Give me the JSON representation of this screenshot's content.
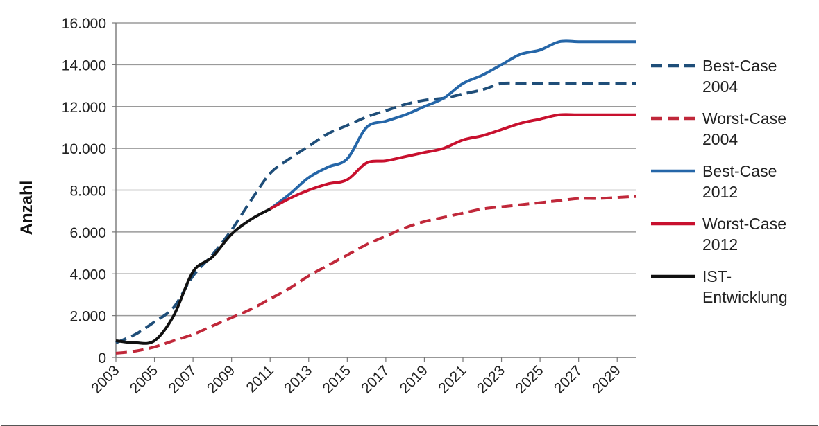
{
  "chart_data": {
    "type": "line",
    "title": "",
    "xlabel": "",
    "ylabel": "Anzahl",
    "xlim": [
      2003,
      2030
    ],
    "ylim": [
      0,
      16000
    ],
    "grid": true,
    "legend_position": "right",
    "x_ticks": [
      "2003",
      "2005",
      "2007",
      "2009",
      "2011",
      "2013",
      "2015",
      "2017",
      "2019",
      "2021",
      "2023",
      "2025",
      "2027",
      "2029"
    ],
    "y_ticks": [
      "0",
      "2.000",
      "4.000",
      "6.000",
      "8.000",
      "10.000",
      "12.000",
      "14.000",
      "16.000"
    ],
    "series": [
      {
        "name": "Best-Case 2004",
        "legend_lines": [
          "Best-Case",
          "2004"
        ],
        "color": "#1f4e79",
        "style": "dashed",
        "points": [
          [
            2003,
            700
          ],
          [
            2004,
            1100
          ],
          [
            2005,
            1700
          ],
          [
            2006,
            2400
          ],
          [
            2007,
            3900
          ],
          [
            2008,
            4900
          ],
          [
            2009,
            6100
          ],
          [
            2010,
            7500
          ],
          [
            2011,
            8800
          ],
          [
            2012,
            9500
          ],
          [
            2013,
            10100
          ],
          [
            2014,
            10700
          ],
          [
            2015,
            11100
          ],
          [
            2016,
            11500
          ],
          [
            2017,
            11800
          ],
          [
            2018,
            12100
          ],
          [
            2019,
            12300
          ],
          [
            2020,
            12400
          ],
          [
            2021,
            12600
          ],
          [
            2022,
            12800
          ],
          [
            2023,
            13100
          ],
          [
            2024,
            13100
          ],
          [
            2025,
            13100
          ],
          [
            2026,
            13100
          ],
          [
            2027,
            13100
          ],
          [
            2028,
            13100
          ],
          [
            2029,
            13100
          ],
          [
            2030,
            13100
          ]
        ]
      },
      {
        "name": "Worst-Case 2004",
        "legend_lines": [
          "Worst-Case",
          "2004"
        ],
        "color": "#c0283a",
        "style": "dashed",
        "points": [
          [
            2003,
            200
          ],
          [
            2004,
            300
          ],
          [
            2005,
            500
          ],
          [
            2006,
            800
          ],
          [
            2007,
            1100
          ],
          [
            2008,
            1500
          ],
          [
            2009,
            1900
          ],
          [
            2010,
            2300
          ],
          [
            2011,
            2800
          ],
          [
            2012,
            3300
          ],
          [
            2013,
            3900
          ],
          [
            2014,
            4400
          ],
          [
            2015,
            4900
          ],
          [
            2016,
            5400
          ],
          [
            2017,
            5800
          ],
          [
            2018,
            6200
          ],
          [
            2019,
            6500
          ],
          [
            2020,
            6700
          ],
          [
            2021,
            6900
          ],
          [
            2022,
            7100
          ],
          [
            2023,
            7200
          ],
          [
            2024,
            7300
          ],
          [
            2025,
            7400
          ],
          [
            2026,
            7500
          ],
          [
            2027,
            7600
          ],
          [
            2028,
            7600
          ],
          [
            2029,
            7650
          ],
          [
            2030,
            7700
          ]
        ]
      },
      {
        "name": "Best-Case 2012",
        "legend_lines": [
          "Best-Case",
          "2012"
        ],
        "color": "#2566a8",
        "style": "solid",
        "points": [
          [
            2011,
            7100
          ],
          [
            2012,
            7800
          ],
          [
            2013,
            8600
          ],
          [
            2014,
            9100
          ],
          [
            2015,
            9500
          ],
          [
            2016,
            11000
          ],
          [
            2017,
            11300
          ],
          [
            2018,
            11600
          ],
          [
            2019,
            12000
          ],
          [
            2020,
            12400
          ],
          [
            2021,
            13100
          ],
          [
            2022,
            13500
          ],
          [
            2023,
            14000
          ],
          [
            2024,
            14500
          ],
          [
            2025,
            14700
          ],
          [
            2026,
            15100
          ],
          [
            2027,
            15100
          ],
          [
            2028,
            15100
          ],
          [
            2029,
            15100
          ],
          [
            2030,
            15100
          ]
        ]
      },
      {
        "name": "Worst-Case 2012",
        "legend_lines": [
          "Worst-Case",
          "2012"
        ],
        "color": "#c8102e",
        "style": "solid",
        "points": [
          [
            2011,
            7100
          ],
          [
            2012,
            7600
          ],
          [
            2013,
            8000
          ],
          [
            2014,
            8300
          ],
          [
            2015,
            8500
          ],
          [
            2016,
            9300
          ],
          [
            2017,
            9400
          ],
          [
            2018,
            9600
          ],
          [
            2019,
            9800
          ],
          [
            2020,
            10000
          ],
          [
            2021,
            10400
          ],
          [
            2022,
            10600
          ],
          [
            2023,
            10900
          ],
          [
            2024,
            11200
          ],
          [
            2025,
            11400
          ],
          [
            2026,
            11600
          ],
          [
            2027,
            11600
          ],
          [
            2028,
            11600
          ],
          [
            2029,
            11600
          ],
          [
            2030,
            11600
          ]
        ]
      },
      {
        "name": "IST-Entwicklung",
        "legend_lines": [
          "IST-",
          "Entwicklung"
        ],
        "color": "#111111",
        "style": "solid",
        "points": [
          [
            2003,
            800
          ],
          [
            2004,
            700
          ],
          [
            2005,
            800
          ],
          [
            2006,
            2000
          ],
          [
            2007,
            4100
          ],
          [
            2008,
            4800
          ],
          [
            2009,
            5900
          ],
          [
            2010,
            6600
          ],
          [
            2011,
            7100
          ]
        ]
      }
    ]
  }
}
